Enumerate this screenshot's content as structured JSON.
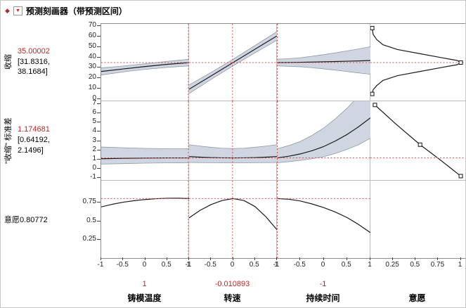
{
  "title": "预测刻画器（带预测区间）",
  "icons": {
    "disclosure_glyph": "◆",
    "menu_glyph": "▼"
  },
  "colors": {
    "accent_red": "#c42222",
    "crosshair": "#dd5050",
    "band_fill": "#cfd6e2",
    "band_edge": "#9099a6",
    "trace": "#1a1a1a",
    "marker_fill": "#ffffff",
    "marker_edge": "#111111"
  },
  "chart_data": {
    "type": "line",
    "subtype": "prediction-profiler",
    "rows": [
      {
        "id": "shrinkage",
        "label": "收缩",
        "current_label": "35.00002",
        "interval_label": "[31.8316, 38.1684]",
        "current": 35.00002,
        "ylim": [
          -2,
          72
        ],
        "ytick_values": [
          0,
          10,
          20,
          30,
          40,
          50,
          60,
          70
        ],
        "ytick_labels": [
          "0",
          "10",
          "20",
          "30",
          "40",
          "50",
          "60",
          "70"
        ],
        "cells": [
          {
            "x": [
              -1,
              -0.5,
              0,
              0.5,
              1
            ],
            "y": [
              26.5,
              28.9,
              31.2,
              33.3,
              35.0
            ],
            "u": [
              29.9,
              31.7,
              33.9,
              36.2,
              38.2
            ],
            "l": [
              23.1,
              26.1,
              28.5,
              30.4,
              31.8
            ]
          },
          {
            "x": [
              -1,
              -0.5,
              0,
              0.5,
              1
            ],
            "y": [
              9.5,
              22.2,
              35.0,
              47.8,
              60.5
            ],
            "u": [
              13.6,
              25.5,
              38.1,
              51.3,
              64.6
            ],
            "l": [
              5.4,
              18.9,
              31.9,
              44.3,
              56.4
            ]
          },
          {
            "x": [
              -1,
              -0.75,
              -0.5,
              -0.25,
              0,
              0.25,
              0.5,
              0.75,
              1
            ],
            "y": [
              35,
              35.1,
              35.3,
              35.5,
              35.8,
              36,
              36.3,
              36.6,
              37
            ],
            "u": [
              38.2,
              38.8,
              39.6,
              41,
              42.6,
              44.3,
              46.2,
              48.1,
              50.2
            ],
            "l": [
              31.8,
              31.4,
              31,
              30.1,
              29,
              27.8,
              26.4,
              25.1,
              23.8
            ]
          },
          {
            "x": [
              0.02,
              0.03,
              0.07,
              0.14,
              0.3,
              0.55,
              0.8,
              0.96,
              1,
              0.96,
              0.8,
              0.55,
              0.3,
              0.14,
              0.07,
              0.03,
              0.02
            ],
            "y": [
              68,
              62,
              57,
              52,
              47.5,
              43.5,
              39.5,
              37,
              35,
              33,
              30.5,
              26.5,
              22.5,
              18,
              13,
              9,
              5
            ],
            "markers": [
              [
                0.02,
                68
              ],
              [
                1,
                35
              ],
              [
                0.02,
                5
              ]
            ]
          }
        ]
      },
      {
        "id": "shrinkage-std",
        "label": "\"收缩\" 标准差",
        "current_label": "1.174681",
        "interval_label": "[0.64192, 2.1496]",
        "current": 1.174681,
        "ylim": [
          -1.3,
          7.3
        ],
        "ytick_values": [
          -1,
          0,
          1,
          2,
          3,
          4,
          5,
          6,
          7
        ],
        "ytick_labels": [
          "-1",
          "0",
          "1",
          "2",
          "3",
          "4",
          "5",
          "6",
          "7"
        ],
        "cells": [
          {
            "x": [
              -1,
              -0.5,
              0,
              0.5,
              1
            ],
            "y": [
              1.08,
              1.12,
              1.15,
              1.17,
              1.17
            ],
            "u": [
              2.35,
              2.27,
              2.2,
              2.16,
              2.15
            ],
            "l": [
              0.5,
              0.55,
              0.6,
              0.63,
              0.64
            ]
          },
          {
            "x": [
              -1,
              -0.75,
              -0.5,
              -0.25,
              0,
              0.25,
              0.5,
              0.75,
              1
            ],
            "y": [
              1.32,
              1.25,
              1.2,
              1.18,
              1.17,
              1.18,
              1.2,
              1.25,
              1.32
            ],
            "u": [
              2.6,
              2.45,
              2.32,
              2.22,
              2.18,
              2.22,
              2.32,
              2.45,
              2.6
            ],
            "l": [
              0.67,
              0.66,
              0.65,
              0.64,
              0.64,
              0.64,
              0.65,
              0.66,
              0.67
            ]
          },
          {
            "x": [
              -1,
              -0.75,
              -0.5,
              -0.25,
              0,
              0.25,
              0.5,
              0.75,
              1
            ],
            "y": [
              1.17,
              1.35,
              1.6,
              1.95,
              2.4,
              3.0,
              3.7,
              4.55,
              5.5
            ],
            "u": [
              2.15,
              2.5,
              2.95,
              3.6,
              4.4,
              5.4,
              6.55,
              7.85,
              9.2
            ],
            "l": [
              0.64,
              0.76,
              0.9,
              1.08,
              1.3,
              1.65,
              2.1,
              2.6,
              3.3
            ]
          },
          {
            "x": [
              0.05,
              0.28,
              0.55,
              0.78,
              1
            ],
            "y": [
              6.9,
              4.85,
              2.6,
              0.9,
              -0.8
            ],
            "markers": [
              [
                0.05,
                6.9
              ],
              [
                0.55,
                2.6
              ],
              [
                1,
                -0.8
              ]
            ]
          }
        ]
      },
      {
        "id": "desirability",
        "label": "意愿",
        "current_label": "0.80772",
        "current": 0.80772,
        "ylim": [
          0,
          1.05
        ],
        "ytick_values": [
          0.25,
          0.5,
          0.75
        ],
        "ytick_labels": [
          "0.25",
          "0.5",
          "0.75"
        ],
        "cells": [
          {
            "x": [
              -1,
              -0.75,
              -0.5,
              -0.25,
              0,
              0.25,
              0.5,
              0.75,
              1
            ],
            "y": [
              0.695,
              0.73,
              0.758,
              0.779,
              0.795,
              0.806,
              0.812,
              0.813,
              0.808
            ]
          },
          {
            "x": [
              -1,
              -0.75,
              -0.5,
              -0.25,
              0,
              0.25,
              0.5,
              0.75,
              1
            ],
            "y": [
              0.545,
              0.648,
              0.726,
              0.781,
              0.808,
              0.781,
              0.7,
              0.56,
              0.385
            ]
          },
          {
            "x": [
              -1,
              -0.75,
              -0.5,
              -0.25,
              0,
              0.25,
              0.5,
              0.75,
              1
            ],
            "y": [
              0.808,
              0.799,
              0.775,
              0.735,
              0.685,
              0.625,
              0.55,
              0.455,
              0.345
            ]
          },
          null
        ]
      }
    ],
    "columns": [
      {
        "id": "mold-temp",
        "label": "铸模温度",
        "current_label": "1",
        "current": 1,
        "xlim": [
          -1,
          1
        ],
        "xtick_values": [
          -1,
          -0.5,
          0,
          0.5,
          1
        ],
        "xtick_labels": [
          "-1",
          "-0.5",
          "0",
          "0.5",
          "1"
        ]
      },
      {
        "id": "speed",
        "label": "转速",
        "current_label": "-0.010893",
        "current": -0.010893,
        "xlim": [
          -1,
          1
        ],
        "xtick_values": [
          -1,
          -0.5,
          0,
          0.5,
          1
        ],
        "xtick_labels": [
          "-1",
          "-0.5",
          "0",
          "0.5",
          "1"
        ]
      },
      {
        "id": "duration",
        "label": "持续时间",
        "current_label": "-1",
        "current": -1,
        "xlim": [
          -1,
          1
        ],
        "xtick_values": [
          -1,
          -0.5,
          0,
          0.5,
          1
        ],
        "xtick_labels": [
          "-1",
          "-0.5",
          "0",
          "0.5",
          "1"
        ]
      },
      {
        "id": "desirability",
        "label": "意愿",
        "xlim": [
          0,
          1.05
        ],
        "xtick_values": [
          0.25,
          0.5,
          0.75,
          1
        ],
        "xtick_labels": [
          "0.25",
          "0.5",
          "0.75",
          "1"
        ]
      }
    ]
  }
}
